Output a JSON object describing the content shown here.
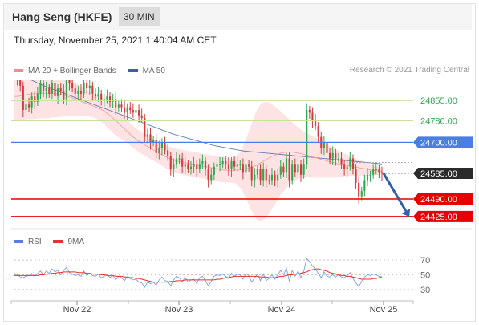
{
  "header": {
    "title": "Hang Seng (HKFE)",
    "timeframe": "30 MIN"
  },
  "datetime": "Thursday, November 25, 2021 1:40:04 AM CET",
  "credit": "Research © 2021 Trading Central",
  "legend": {
    "bollinger": {
      "label": "MA 20 + Bollinger Bands",
      "color": "#f08c8c"
    },
    "ma50": {
      "label": "MA 50",
      "color": "#3a5fa8"
    },
    "rsi": {
      "label": "RSI",
      "color": "#5b7fd6"
    },
    "rsi_ma": {
      "label": "9MA",
      "color": "#e83030"
    }
  },
  "colors": {
    "up": "#2fa84f",
    "down": "#d63a3a",
    "band": "#fde3e3",
    "support": "#e60000",
    "resistance": "#c8e0a0",
    "pivot": "#4a7ee6",
    "arrow": "#2f5ea8"
  },
  "chart_data": [
    {
      "type": "candlestick",
      "title": "",
      "x_ticks": [
        "Nov 22",
        "Nov 23",
        "Nov 24",
        "Nov 25"
      ],
      "y_unit": "index points",
      "ylim": [
        24380,
        24930
      ],
      "levels": [
        {
          "price": 24855.0,
          "label": "24855.00",
          "kind": "resistance"
        },
        {
          "price": 24780.0,
          "label": "24780.00",
          "kind": "resistance"
        },
        {
          "price": 24700.0,
          "label": "24700.00",
          "kind": "pivot"
        },
        {
          "price": 24585.0,
          "label": "24585.00",
          "kind": "last"
        },
        {
          "price": 24490.0,
          "label": "24490.00",
          "kind": "support"
        },
        {
          "price": 24425.0,
          "label": "24425.00",
          "kind": "support"
        }
      ],
      "close": [
        24950,
        24930,
        24910,
        24820,
        24840,
        24830,
        24870,
        24850,
        24880,
        24920,
        24890,
        24900,
        24880,
        24920,
        24870,
        24900,
        24890,
        24860,
        24950,
        24920,
        24900,
        24880,
        24890,
        24880,
        24920,
        24900,
        24910,
        24880,
        24870,
        24880,
        24860,
        24860,
        24870,
        24850,
        24860,
        24830,
        24840,
        24830,
        24810,
        24830,
        24820,
        24810,
        24820,
        24800,
        24790,
        24720,
        24730,
        24700,
        24710,
        24660,
        24680,
        24700,
        24670,
        24650,
        24600,
        24620,
        24640,
        24640,
        24610,
        24620,
        24600,
        24610,
        24620,
        24600,
        24620,
        24630,
        24600,
        24560,
        24580,
        24610,
        24620,
        24620,
        24630,
        24620,
        24600,
        24630,
        24610,
        24620,
        24620,
        24590,
        24620,
        24610,
        24560,
        24580,
        24600,
        24560,
        24600,
        24560,
        24560,
        24580,
        24560,
        24580,
        24610,
        24590,
        24640,
        24560,
        24620,
        24590,
        24620,
        24580,
        24620,
        24820,
        24810,
        24780,
        24760,
        24720,
        24680,
        24700,
        24660,
        24640,
        24660,
        24640,
        24640,
        24620,
        24600,
        24610,
        24640,
        24600,
        24550,
        24500,
        24520,
        24560,
        24580,
        24580,
        24600,
        24600,
        24590,
        24585
      ],
      "ma20": [
        24870,
        24870,
        24872,
        24874,
        24876,
        24878,
        24879,
        24880,
        24881,
        24882,
        24882,
        24882,
        24882,
        24882,
        24881,
        24879,
        24877,
        24875,
        24872,
        24868,
        24864,
        24860,
        24856,
        24852,
        24848,
        24844,
        24840,
        24836,
        24832,
        24827,
        24822,
        24816,
        24808,
        24800,
        24790,
        24780,
        24770,
        24760,
        24750,
        24740,
        24730,
        24720,
        24712,
        24704,
        24697,
        24690,
        24684,
        24678,
        24672,
        24666,
        24660,
        24654,
        24648,
        24643,
        24638,
        24634,
        24631,
        24628,
        24626,
        24624,
        24622,
        24620,
        24618,
        24616,
        24614,
        24612,
        24610,
        24608,
        24606,
        24604,
        24602,
        24600,
        24598,
        24597,
        24596,
        24595,
        24596,
        24597,
        24598,
        24600,
        24602,
        24604,
        24608,
        24612,
        24618,
        24624,
        24630,
        24636,
        24642,
        24648,
        24652,
        24656,
        24660,
        24662,
        24663,
        24664,
        24664,
        24662,
        24660,
        24658,
        24655,
        24652,
        24649,
        24646,
        24643,
        24640,
        24637,
        24634,
        24631,
        24628,
        24625,
        24622,
        24620,
        24618,
        24616,
        24614,
        24612,
        24610,
        24608,
        24606,
        24604,
        24602,
        24600,
        24598,
        24596,
        24595,
        24594,
        24593
      ],
      "band_upper": [
        24955,
        24958,
        24961,
        24964,
        24967,
        24970,
        24972,
        24973,
        24974,
        24975,
        24975,
        24975,
        24974,
        24972,
        24969,
        24965,
        24960,
        24954,
        24947,
        24939,
        24930,
        24921,
        24913,
        24905,
        24897,
        24890,
        24884,
        24879,
        24875,
        24871,
        24868,
        24864,
        24860,
        24854,
        24845,
        24835,
        24822,
        24808,
        24795,
        24783,
        24771,
        24761,
        24752,
        24744,
        24737,
        24730,
        24724,
        24718,
        24712,
        24706,
        24700,
        24695,
        24690,
        24686,
        24682,
        24679,
        24676,
        24674,
        24672,
        24670,
        24668,
        24666,
        24664,
        24662,
        24660,
        24658,
        24656,
        24654,
        24652,
        24650,
        24648,
        24646,
        24644,
        24642,
        24641,
        24640,
        24642,
        24650,
        24665,
        24685,
        24710,
        24740,
        24770,
        24800,
        24824,
        24840,
        24848,
        24850,
        24848,
        24842,
        24834,
        24825,
        24815,
        24805,
        24795,
        24785,
        24775,
        24765,
        24756,
        24748,
        24741,
        24735,
        24729,
        24723,
        24717,
        24711,
        24705,
        24699,
        24693,
        24687,
        24681,
        24675,
        24669,
        24663,
        24658,
        24653,
        24648,
        24644,
        24640,
        24636,
        24632,
        24628,
        24624,
        24620,
        24616,
        24612,
        24609,
        24606
      ],
      "band_lower": [
        24785,
        24782,
        24783,
        24784,
        24785,
        24786,
        24786,
        24787,
        24788,
        24789,
        24789,
        24789,
        24790,
        24792,
        24793,
        24793,
        24794,
        24796,
        24797,
        24797,
        24798,
        24799,
        24799,
        24799,
        24799,
        24798,
        24796,
        24793,
        24789,
        24783,
        24776,
        24768,
        24756,
        24746,
        24735,
        24725,
        24718,
        24712,
        24705,
        24697,
        24689,
        24679,
        24672,
        24664,
        24657,
        24650,
        24644,
        24638,
        24632,
        24626,
        24620,
        24613,
        24606,
        24600,
        24594,
        24589,
        24586,
        24582,
        24580,
        24578,
        24576,
        24574,
        24572,
        24570,
        24568,
        24566,
        24564,
        24562,
        24560,
        24558,
        24556,
        24554,
        24552,
        24552,
        24551,
        24550,
        24550,
        24544,
        24531,
        24515,
        24494,
        24468,
        24446,
        24424,
        24412,
        24408,
        24412,
        24422,
        24436,
        24454,
        24470,
        24487,
        24505,
        24519,
        24531,
        24543,
        24553,
        24559,
        24564,
        24568,
        24569,
        24569,
        24569,
        24569,
        24569,
        24569,
        24569,
        24569,
        24569,
        24569,
        24569,
        24569,
        24571,
        24573,
        24574,
        24575,
        24576,
        24576,
        24576,
        24576,
        24576,
        24576,
        24576,
        24576,
        24576,
        24578,
        24579,
        24580
      ],
      "ma50": [
        24960,
        24955,
        24950,
        24945,
        24940,
        24935,
        24930,
        24925,
        24920,
        24915,
        24910,
        24906,
        24902,
        24898,
        24894,
        24890,
        24886,
        24882,
        24878,
        24874,
        24870,
        24866,
        24862,
        24858,
        24854,
        24850,
        24846,
        24842,
        24838,
        24834,
        24830,
        24826,
        24822,
        24818,
        24814,
        24810,
        24806,
        24802,
        24798,
        24794,
        24790,
        24786,
        24782,
        24778,
        24774,
        24770,
        24766,
        24762,
        24758,
        24754,
        24750,
        24746,
        24742,
        24738,
        24734,
        24730,
        24727,
        24724,
        24721,
        24718,
        24715,
        24712,
        24709,
        24706,
        24703,
        24700,
        24697,
        24694,
        24691,
        24688,
        24686,
        24684,
        24682,
        24680,
        24678,
        24676,
        24674,
        24672,
        24670,
        24668,
        24667,
        24666,
        24665,
        24664,
        24663,
        24662,
        24661,
        24660,
        24659,
        24658,
        24657,
        24656,
        24655,
        24654,
        24653,
        24652,
        24651,
        24650,
        24649,
        24648,
        24647,
        24646,
        24645,
        24644,
        24643,
        24642,
        24641,
        24640,
        24639,
        24638,
        24637,
        24636,
        24635,
        24634,
        24633,
        24632,
        24631,
        24630,
        24629,
        24628,
        24627,
        24626,
        24625,
        24624,
        24623,
        24622,
        24621,
        24620
      ]
    },
    {
      "type": "line",
      "title": "",
      "ylim": [
        20,
        80
      ],
      "y_ticks": [
        "70",
        "50",
        "30"
      ],
      "rsi": [
        52,
        50,
        47,
        46,
        48,
        49,
        52,
        48,
        52,
        55,
        50,
        55,
        52,
        58,
        54,
        56,
        50,
        56,
        60,
        53,
        51,
        49,
        50,
        48,
        55,
        49,
        52,
        49,
        48,
        51,
        46,
        48,
        51,
        46,
        49,
        43,
        48,
        46,
        42,
        47,
        45,
        43,
        44,
        40,
        39,
        33,
        40,
        38,
        40,
        36,
        43,
        47,
        42,
        41,
        35,
        43,
        48,
        46,
        40,
        47,
        40,
        43,
        44,
        38,
        46,
        48,
        42,
        35,
        41,
        48,
        50,
        49,
        51,
        48,
        45,
        52,
        48,
        51,
        50,
        44,
        52,
        49,
        40,
        46,
        51,
        42,
        51,
        42,
        45,
        50,
        44,
        50,
        56,
        50,
        59,
        41,
        56,
        48,
        55,
        46,
        55,
        72,
        68,
        62,
        58,
        52,
        46,
        54,
        48,
        47,
        50,
        47,
        50,
        47,
        46,
        49,
        53,
        45,
        39,
        34,
        41,
        47,
        50,
        49,
        51,
        50,
        48,
        47
      ],
      "ma9": [
        49,
        49,
        49,
        49,
        49,
        49,
        49,
        49,
        49,
        50,
        50,
        51,
        51,
        52,
        52,
        53,
        53,
        54,
        54,
        54,
        54,
        54,
        53,
        53,
        53,
        52,
        52,
        51,
        51,
        51,
        50,
        50,
        49,
        49,
        49,
        48,
        48,
        48,
        47,
        47,
        46,
        46,
        45,
        45,
        44,
        43,
        42,
        41,
        40,
        40,
        40,
        40,
        40,
        40,
        41,
        41,
        42,
        42,
        42,
        43,
        43,
        43,
        43,
        43,
        43,
        43,
        43,
        43,
        43,
        43,
        44,
        44,
        45,
        46,
        46,
        47,
        48,
        48,
        48,
        48,
        48,
        48,
        48,
        48,
        48,
        47,
        47,
        47,
        46,
        46,
        46,
        47,
        48,
        48,
        49,
        50,
        50,
        51,
        51,
        52,
        53,
        54,
        56,
        57,
        58,
        58,
        57,
        56,
        55,
        53,
        52,
        51,
        50,
        49,
        49,
        48,
        48,
        47,
        46,
        45,
        44,
        44,
        44,
        44,
        45,
        45,
        46,
        47
      ]
    }
  ]
}
